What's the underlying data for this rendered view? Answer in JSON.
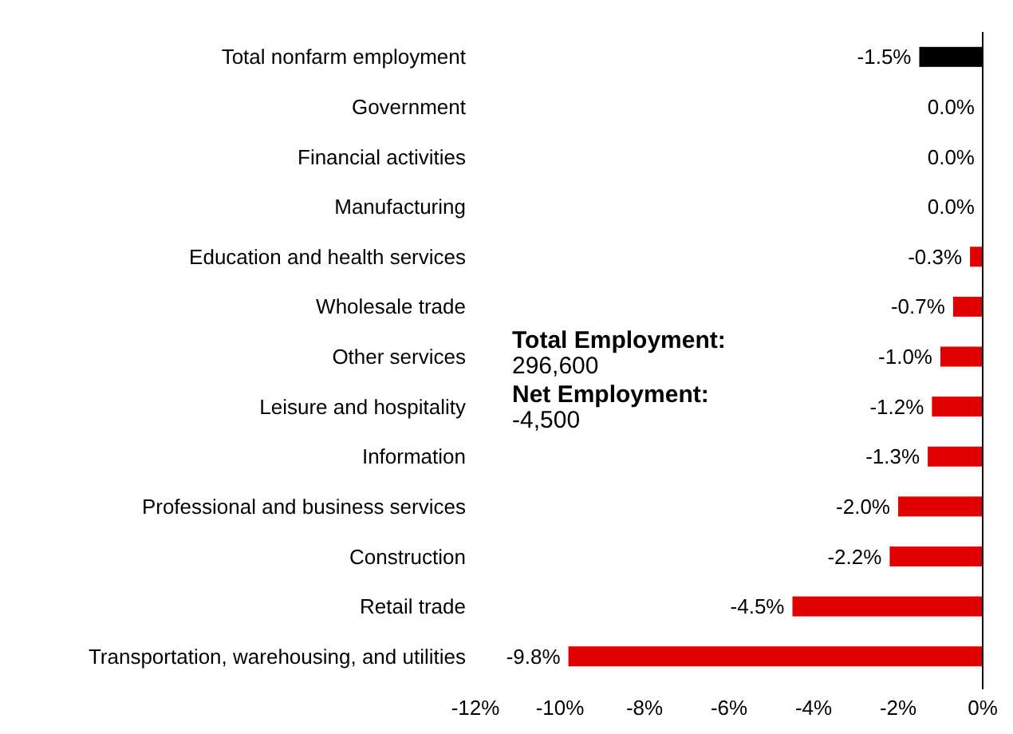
{
  "chart_data": {
    "type": "bar",
    "orientation": "horizontal",
    "categories": [
      "Total nonfarm employment",
      "Government",
      "Financial activities",
      "Manufacturing",
      "Education and health services",
      "Wholesale trade",
      "Other services",
      "Leisure and hospitality",
      "Information",
      "Professional and business services",
      "Construction",
      "Retail trade",
      "Transportation, warehousing, and utilities"
    ],
    "values": [
      -1.5,
      0.0,
      0.0,
      0.0,
      -0.3,
      -0.7,
      -1.0,
      -1.2,
      -1.3,
      -2.0,
      -2.2,
      -4.5,
      -9.8
    ],
    "colors": [
      "#000000",
      "#e00000",
      "#e00000",
      "#e00000",
      "#e00000",
      "#e00000",
      "#e00000",
      "#e00000",
      "#e00000",
      "#e00000",
      "#e00000",
      "#e00000",
      "#e00000"
    ],
    "value_labels": [
      "-1.5%",
      "0.0%",
      "0.0%",
      "0.0%",
      "-0.3%",
      "-0.7%",
      "-1.0%",
      "-1.2%",
      "-1.3%",
      "-2.0%",
      "-2.2%",
      "-4.5%",
      "-9.8%"
    ],
    "xlim": [
      -12,
      0
    ],
    "xticks": [
      {
        "value": -12,
        "label": "-12%"
      },
      {
        "value": -10,
        "label": "-10%"
      },
      {
        "value": -8,
        "label": "-8%"
      },
      {
        "value": -6,
        "label": "-6%"
      },
      {
        "value": -4,
        "label": "-4%"
      },
      {
        "value": -2,
        "label": "-2%"
      },
      {
        "value": 0,
        "label": "0%"
      }
    ],
    "grid": false,
    "annotations": [
      "Total Employment:",
      "296,600",
      "Net Employment:",
      "-4,500"
    ]
  }
}
